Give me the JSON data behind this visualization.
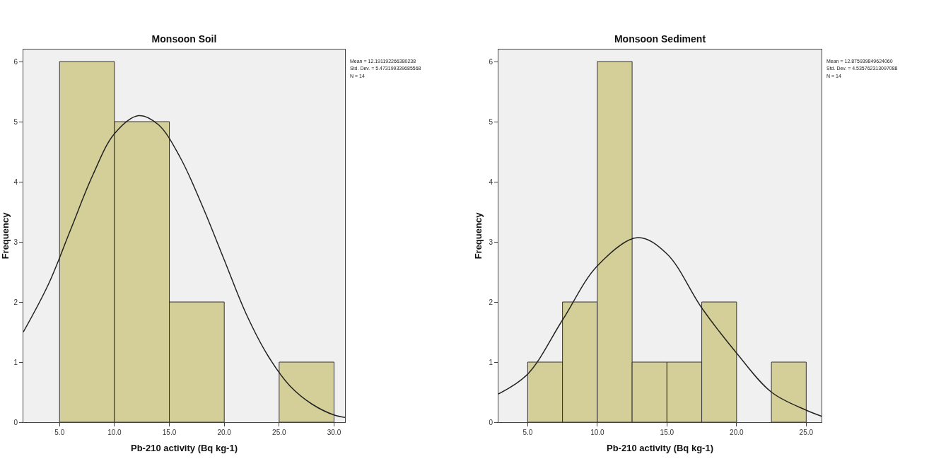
{
  "chart_data": [
    {
      "type": "histogram",
      "title": "Monsoon Soil",
      "xlabel": "Pb-210 activity (Bq kg-1)",
      "ylabel": "Frequency",
      "bins": [
        5,
        10,
        15,
        20,
        25,
        30
      ],
      "values": [
        6,
        5,
        2,
        0,
        1
      ],
      "color": "#d4cf98",
      "series": [
        {
          "type": "line",
          "color": "#222222",
          "x": [
            1.7,
            4,
            6,
            8,
            10,
            12.2,
            14,
            16,
            18,
            20,
            22,
            24,
            26,
            28,
            30,
            31
          ],
          "values": [
            1.5,
            2.3,
            3.2,
            4.1,
            4.8,
            5.1,
            4.95,
            4.4,
            3.6,
            2.7,
            1.8,
            1.1,
            0.6,
            0.3,
            0.12,
            0.08
          ]
        }
      ],
      "xlim": [
        1.7,
        31.0
      ],
      "ylim": [
        0,
        6.2
      ],
      "xticks": [
        {
          "value": 5,
          "label": "5.0"
        },
        {
          "value": 10,
          "label": "10.0"
        },
        {
          "value": 15,
          "label": "15.0"
        },
        {
          "value": 20,
          "label": "20.0"
        },
        {
          "value": 25,
          "label": "25.0"
        },
        {
          "value": 30,
          "label": "30.0"
        }
      ],
      "yticks": [
        0,
        1,
        2,
        3,
        4,
        5,
        6
      ],
      "annotations": [
        "Mean = 12.191192266380238",
        "Std. Dev. = 5.473199339685568",
        "N = 14"
      ]
    },
    {
      "type": "histogram",
      "title": "Monsoon Sediment",
      "xlabel": "Pb-210 activity (Bq kg-1)",
      "ylabel": "Frequency",
      "bins": [
        5,
        7.5,
        10,
        12.5,
        15,
        17.5,
        20,
        22.5,
        25
      ],
      "values": [
        1,
        2,
        6,
        1,
        1,
        2,
        0,
        1
      ],
      "color": "#d4cf98",
      "series": [
        {
          "type": "line",
          "color": "#222222",
          "x": [
            2.9,
            5,
            7.5,
            10,
            12.9,
            15,
            17.5,
            20,
            22.5,
            25,
            26.1
          ],
          "values": [
            0.47,
            0.8,
            1.7,
            2.6,
            3.07,
            2.8,
            1.9,
            1.15,
            0.5,
            0.2,
            0.1
          ]
        }
      ],
      "xlim": [
        2.9,
        26.1
      ],
      "ylim": [
        0,
        6.2
      ],
      "xticks": [
        {
          "value": 5,
          "label": "5.0"
        },
        {
          "value": 10,
          "label": "10.0"
        },
        {
          "value": 15,
          "label": "15.0"
        },
        {
          "value": 20,
          "label": "20.0"
        },
        {
          "value": 25,
          "label": "25.0"
        }
      ],
      "yticks": [
        0,
        1,
        2,
        3,
        4,
        5,
        6
      ],
      "annotations": [
        "Mean = 12.875939849624060",
        "Std. Dev. = 4.535762313097088",
        "N = 14"
      ]
    }
  ]
}
